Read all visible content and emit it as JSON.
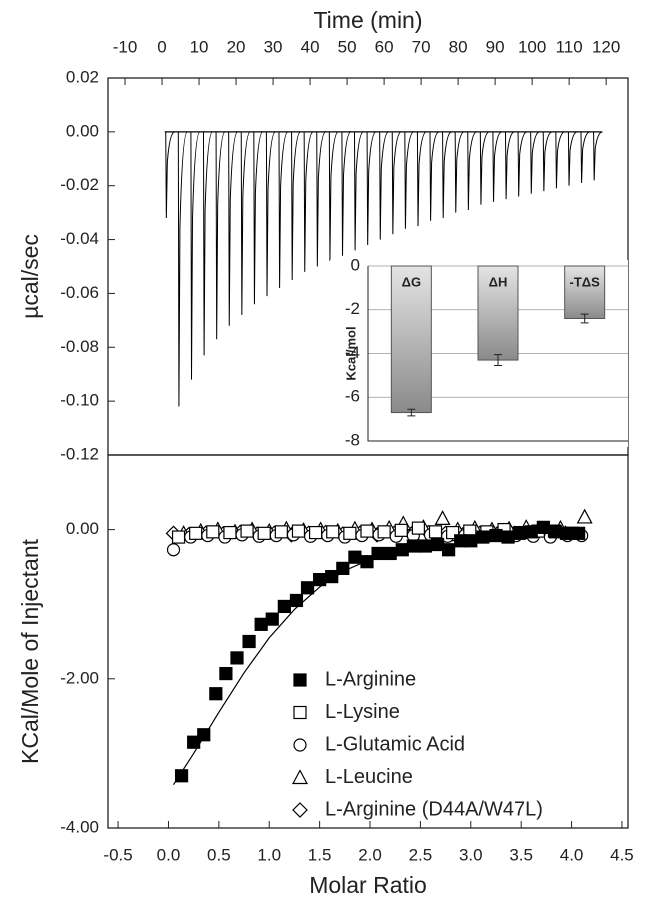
{
  "chart_data": [
    {
      "type": "spike",
      "xlabel": "Time (min)",
      "ylabel": "µcal/sec",
      "color": "#000000",
      "x": [
        1.0,
        4.4,
        7.8,
        11.2,
        14.6,
        18.0,
        21.4,
        24.8,
        28.2,
        31.6,
        35.0,
        38.4,
        41.8,
        45.2,
        48.6,
        52.0,
        55.4,
        58.8,
        62.2,
        65.6,
        69.0,
        72.4,
        75.8,
        79.2,
        82.6,
        86.0,
        89.4,
        92.8,
        96.2,
        99.6,
        103.0,
        106.4,
        109.8,
        113.2,
        116.6
      ],
      "values": [
        -0.032,
        -0.102,
        -0.092,
        -0.083,
        -0.077,
        -0.072,
        -0.068,
        -0.064,
        -0.061,
        -0.058,
        -0.055,
        -0.052,
        -0.05,
        -0.048,
        -0.046,
        -0.044,
        -0.042,
        -0.04,
        -0.038,
        -0.036,
        -0.035,
        -0.033,
        -0.032,
        -0.03,
        -0.029,
        -0.027,
        -0.026,
        -0.025,
        -0.024,
        -0.023,
        -0.022,
        -0.021,
        -0.02,
        -0.019,
        -0.018
      ],
      "xlim": [
        -14.6,
        125.9
      ],
      "ylim": [
        -0.12,
        0.02
      ],
      "xticks": [
        -10,
        0,
        10,
        20,
        30,
        40,
        50,
        60,
        70,
        80,
        90,
        100,
        110,
        120
      ],
      "yticks": [
        0.02,
        {
          "value": 0,
          "label": "0.00"
        },
        -0.02,
        -0.04,
        -0.06,
        -0.08,
        {
          "value": -0.1,
          "label": "-0.10"
        },
        -0.12
      ]
    },
    {
      "type": "bar",
      "ylabel": "Kcal/mol",
      "categories": [
        "ΔG",
        "ΔH",
        "-TΔS"
      ],
      "values": [
        -6.7,
        -4.3,
        -2.4
      ],
      "errors": [
        0.15,
        0.25,
        0.2
      ],
      "ylim": [
        -8,
        0
      ],
      "yticks": [
        0,
        -2,
        -4,
        -6,
        -8
      ],
      "grid": true,
      "color": "#8a8a8a"
    },
    {
      "type": "scatter",
      "xlabel": "Molar Ratio",
      "ylabel": "KCal/Mole of Injectant",
      "xlim": [
        -0.6,
        4.56
      ],
      "ylim": [
        -4,
        1
      ],
      "xticks": [
        -0.5,
        {
          "value": 0,
          "label": "0.0"
        },
        0.5,
        {
          "value": 1,
          "label": "1.0"
        },
        1.5,
        {
          "value": 2,
          "label": "2.0"
        },
        2.5,
        {
          "value": 3,
          "label": "3.0"
        },
        3.5,
        {
          "value": 4,
          "label": "4.0"
        },
        4.5
      ],
      "yticks": [
        {
          "value": 0,
          "label": "0.00"
        },
        {
          "value": -2,
          "label": "-2.00"
        },
        {
          "value": -4,
          "label": "-4.00"
        }
      ],
      "legend": "bottom-center",
      "series": [
        {
          "name": "L-Arginine",
          "marker": "square",
          "color": "#000000",
          "filled": true,
          "x": [
            0.13,
            0.25,
            0.35,
            0.47,
            0.57,
            0.68,
            0.8,
            0.92,
            1.03,
            1.15,
            1.27,
            1.38,
            1.5,
            1.62,
            1.73,
            1.85,
            1.97,
            2.08,
            2.2,
            2.32,
            2.43,
            2.55,
            2.67,
            2.78,
            2.9,
            3.0,
            3.12,
            3.25,
            3.37,
            3.48,
            3.6,
            3.72,
            3.83,
            3.95,
            4.07
          ],
          "values": [
            -3.3,
            -2.85,
            -2.75,
            -2.2,
            -1.93,
            -1.72,
            -1.5,
            -1.27,
            -1.2,
            -1.03,
            -0.95,
            -0.78,
            -0.67,
            -0.63,
            -0.52,
            -0.37,
            -0.43,
            -0.32,
            -0.32,
            -0.27,
            -0.22,
            -0.22,
            -0.2,
            -0.27,
            -0.15,
            -0.15,
            -0.1,
            -0.08,
            -0.1,
            -0.05,
            -0.03,
            0.03,
            -0.02,
            -0.05,
            -0.05
          ]
        },
        {
          "name": "L-Lysine",
          "marker": "square",
          "color": "#000000",
          "filled": false,
          "x": [
            0.1,
            0.27,
            0.44,
            0.61,
            0.78,
            0.95,
            1.12,
            1.29,
            1.46,
            1.63,
            1.8,
            1.97,
            2.14,
            2.31,
            2.48,
            2.65,
            2.82,
            2.99,
            3.16,
            3.33,
            3.5,
            3.67,
            3.84,
            4.01
          ],
          "values": [
            -0.1,
            -0.05,
            -0.03,
            -0.04,
            -0.02,
            -0.05,
            -0.03,
            -0.02,
            -0.04,
            -0.03,
            -0.05,
            -0.02,
            -0.03,
            -0.01,
            0.02,
            -0.03,
            -0.04,
            -0.02,
            -0.03,
            0.0,
            -0.04,
            -0.02,
            -0.03,
            -0.05
          ]
        },
        {
          "name": "L-Glutamic Acid",
          "marker": "circle",
          "color": "#000000",
          "filled": false,
          "x": [
            0.05,
            0.22,
            0.39,
            0.56,
            0.73,
            0.9,
            1.07,
            1.24,
            1.41,
            1.58,
            1.75,
            1.92,
            2.09,
            2.26,
            2.43,
            2.6,
            2.77,
            2.94,
            3.11,
            3.28,
            3.45,
            3.62,
            3.79,
            3.96,
            4.1
          ],
          "values": [
            -0.27,
            -0.1,
            -0.08,
            -0.1,
            -0.07,
            -0.09,
            -0.08,
            -0.07,
            -0.09,
            -0.08,
            -0.1,
            -0.08,
            -0.07,
            -0.09,
            -0.08,
            -0.07,
            -0.09,
            -0.08,
            -0.1,
            -0.07,
            -0.08,
            -0.09,
            -0.1,
            -0.08,
            -0.08
          ]
        },
        {
          "name": "L-Leucine",
          "marker": "triangle",
          "color": "#000000",
          "filled": false,
          "x": [
            0.15,
            0.32,
            0.49,
            0.66,
            0.83,
            1.0,
            1.17,
            1.34,
            1.51,
            1.68,
            1.85,
            2.02,
            2.19,
            2.33,
            2.53,
            2.72,
            2.87,
            3.04,
            3.21,
            3.38,
            3.55,
            3.72,
            3.89,
            4.13
          ],
          "values": [
            -0.05,
            -0.02,
            0.0,
            -0.03,
            0.0,
            -0.02,
            0.01,
            -0.01,
            0.0,
            -0.02,
            0.01,
            0.0,
            0.02,
            0.08,
            0.03,
            0.15,
            0.0,
            0.02,
            0.0,
            0.01,
            0.03,
            0.0,
            0.02,
            0.17
          ]
        },
        {
          "name": "L-Arginine (D44A/W47L)",
          "marker": "diamond",
          "color": "#000000",
          "filled": false,
          "x": [
            0.05,
            0.2,
            0.37,
            0.54,
            0.71,
            0.88,
            1.05,
            1.22,
            1.39,
            1.56,
            1.73,
            1.9,
            2.07,
            2.24,
            2.41,
            2.58,
            2.75,
            2.92,
            3.09,
            3.26,
            3.43,
            3.6,
            3.77,
            3.94
          ],
          "values": [
            -0.05,
            -0.07,
            -0.05,
            -0.06,
            -0.04,
            -0.06,
            -0.05,
            -0.07,
            -0.05,
            -0.04,
            -0.06,
            -0.05,
            -0.07,
            -0.05,
            -0.06,
            -0.04,
            -0.05,
            -0.07,
            -0.05,
            -0.06,
            -0.05,
            -0.04,
            -0.06,
            -0.05
          ]
        }
      ],
      "fit_line": {
        "color": "#000000",
        "x": [
          0.05,
          0.25,
          0.5,
          0.75,
          1.0,
          1.25,
          1.5,
          1.75,
          2.0,
          2.25,
          2.5,
          2.75,
          3.0,
          3.5,
          4.1
        ],
        "values": [
          -3.42,
          -3.0,
          -2.45,
          -1.92,
          -1.45,
          -1.07,
          -0.77,
          -0.55,
          -0.4,
          -0.29,
          -0.22,
          -0.16,
          -0.12,
          -0.07,
          -0.04
        ]
      }
    }
  ]
}
